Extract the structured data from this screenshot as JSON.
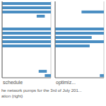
{
  "chart_data": [
    {
      "type": "bar",
      "orientation": "horizontal",
      "title": "schedule",
      "categories": [
        null,
        null,
        null,
        null,
        null,
        null,
        null,
        null,
        null,
        null,
        null,
        null,
        null,
        null,
        null,
        null,
        null,
        null
      ],
      "values": [
        [
          0,
          24
        ],
        [
          0,
          24
        ],
        [
          0,
          24
        ],
        [
          17,
          21
        ],
        [
          0,
          0
        ],
        [
          0,
          0
        ],
        [
          0,
          24
        ],
        [
          0,
          24
        ],
        [
          0,
          24
        ],
        [
          0,
          24
        ],
        [
          0,
          24
        ],
        [
          0,
          0
        ],
        [
          0,
          0
        ],
        [
          0,
          0
        ],
        [
          0,
          0
        ],
        [
          0,
          0
        ],
        [
          18,
          22
        ],
        [
          21,
          24
        ]
      ],
      "color": "#4a8ec2",
      "xlim": [
        0,
        24
      ],
      "xticks": [
        0,
        6,
        12,
        18,
        24
      ],
      "grid": true,
      "tick_labels": false
    },
    {
      "type": "bar",
      "orientation": "horizontal",
      "title": "optimiz...",
      "categories": [
        null,
        null,
        null,
        null,
        null,
        null,
        null,
        null,
        null,
        null,
        null,
        null,
        null,
        null,
        null,
        null,
        null,
        null
      ],
      "values": [
        [
          0,
          0
        ],
        [
          0,
          0
        ],
        [
          13,
          24
        ],
        [
          0,
          0
        ],
        [
          0,
          0
        ],
        [
          0,
          0
        ],
        [
          0,
          24
        ],
        [
          0,
          24
        ],
        [
          0,
          18
        ],
        [
          0,
          24
        ],
        [
          0,
          17
        ],
        [
          0,
          0
        ],
        [
          0,
          0
        ],
        [
          0,
          0
        ],
        [
          0,
          0
        ],
        [
          0,
          0
        ],
        [
          0,
          0
        ],
        [
          22,
          24
        ]
      ],
      "color": "#4a8ec2",
      "xlim": [
        0,
        24
      ],
      "xticks": [
        0,
        6,
        12,
        18,
        24
      ],
      "grid": true,
      "tick_labels": false
    }
  ],
  "annotations": [
    "he network pumps for the 3rd of July 201...",
    "ation (right)"
  ]
}
